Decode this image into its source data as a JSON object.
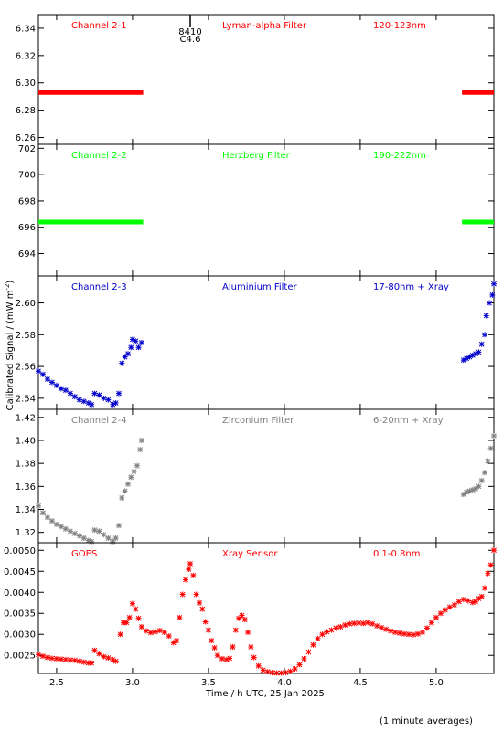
{
  "colors": {
    "red": "#ff0000",
    "green": "#00ff00",
    "blue": "#0000cc",
    "gray": "#808080",
    "axis": "#000000"
  },
  "y_axis_label": "Calibrated Signal / (mW m",
  "y_axis_label_sup": "-2",
  "y_axis_label_end": ")",
  "footnote": "(1 minute averages)",
  "event_marker": {
    "time": 3.38,
    "line1": "8410",
    "line2": "C4.6"
  },
  "chart_data": [
    {
      "type": "scatter",
      "color": "red",
      "labels": [
        "Channel 2-1",
        "Lyman-alpha Filter",
        "120-123nm"
      ],
      "xlim": [
        2.38,
        5.38
      ],
      "ylim": [
        6.255,
        6.35
      ],
      "yticks": [
        6.26,
        6.28,
        6.3,
        6.32,
        6.34
      ],
      "ytick_labels": [
        "6.26",
        "6.28",
        "6.30",
        "6.32",
        "6.34"
      ],
      "segments": [
        {
          "x0": 2.38,
          "x1": 3.07,
          "y": 6.293
        },
        {
          "x0": 5.17,
          "x1": 5.38,
          "y": 6.293
        }
      ]
    },
    {
      "type": "scatter",
      "color": "green",
      "labels": [
        "Channel 2-2",
        "Herzberg Filter",
        "190-222nm"
      ],
      "xlim": [
        2.38,
        5.38
      ],
      "ylim": [
        692.3,
        702.3
      ],
      "yticks": [
        694,
        696,
        698,
        700,
        702
      ],
      "ytick_labels": [
        "694",
        "696",
        "698",
        "700",
        "702"
      ],
      "segments": [
        {
          "x0": 2.38,
          "x1": 3.07,
          "y": 696.4
        },
        {
          "x0": 5.17,
          "x1": 5.38,
          "y": 696.4
        }
      ]
    },
    {
      "type": "scatter",
      "color": "blue",
      "labels": [
        "Channel 2-3",
        "Aluminium Filter",
        "17-80nm + Xray"
      ],
      "xlim": [
        2.38,
        5.38
      ],
      "ylim": [
        2.533,
        2.617
      ],
      "yticks": [
        2.54,
        2.56,
        2.58,
        2.6
      ],
      "ytick_labels": [
        "2.54",
        "2.56",
        "2.58",
        "2.60"
      ],
      "points": [
        [
          2.38,
          2.557
        ],
        [
          2.41,
          2.555
        ],
        [
          2.44,
          2.552
        ],
        [
          2.47,
          2.55
        ],
        [
          2.5,
          2.548
        ],
        [
          2.53,
          2.546
        ],
        [
          2.56,
          2.545
        ],
        [
          2.59,
          2.543
        ],
        [
          2.62,
          2.541
        ],
        [
          2.65,
          2.539
        ],
        [
          2.68,
          2.538
        ],
        [
          2.71,
          2.537
        ],
        [
          2.73,
          2.536
        ],
        [
          2.75,
          2.543
        ],
        [
          2.78,
          2.542
        ],
        [
          2.81,
          2.54
        ],
        [
          2.84,
          2.539
        ],
        [
          2.87,
          2.536
        ],
        [
          2.89,
          2.537
        ],
        [
          2.91,
          2.543
        ],
        [
          2.93,
          2.562
        ],
        [
          2.95,
          2.566
        ],
        [
          2.97,
          2.568
        ],
        [
          2.99,
          2.572
        ],
        [
          3.0,
          2.577
        ],
        [
          3.02,
          2.576
        ],
        [
          3.04,
          2.572
        ],
        [
          3.06,
          2.575
        ],
        [
          5.18,
          2.564
        ],
        [
          5.2,
          2.565
        ],
        [
          5.22,
          2.566
        ],
        [
          5.24,
          2.567
        ],
        [
          5.26,
          2.568
        ],
        [
          5.28,
          2.569
        ],
        [
          5.3,
          2.574
        ],
        [
          5.32,
          2.58
        ],
        [
          5.33,
          2.592
        ],
        [
          5.35,
          2.6
        ],
        [
          5.37,
          2.605
        ],
        [
          5.38,
          2.612
        ]
      ]
    },
    {
      "type": "scatter",
      "color": "gray",
      "labels": [
        "Channel 2-4",
        "Zirconium Filter",
        "6-20nm + Xray"
      ],
      "xlim": [
        2.38,
        5.38
      ],
      "ylim": [
        1.311,
        1.427
      ],
      "yticks": [
        1.32,
        1.34,
        1.36,
        1.38,
        1.4,
        1.42
      ],
      "ytick_labels": [
        "1.32",
        "1.34",
        "1.36",
        "1.38",
        "1.40",
        "1.42"
      ],
      "points": [
        [
          2.38,
          1.343
        ],
        [
          2.41,
          1.337
        ],
        [
          2.44,
          1.333
        ],
        [
          2.47,
          1.33
        ],
        [
          2.5,
          1.327
        ],
        [
          2.53,
          1.325
        ],
        [
          2.56,
          1.323
        ],
        [
          2.59,
          1.321
        ],
        [
          2.62,
          1.319
        ],
        [
          2.65,
          1.317
        ],
        [
          2.68,
          1.315
        ],
        [
          2.71,
          1.313
        ],
        [
          2.73,
          1.312
        ],
        [
          2.75,
          1.322
        ],
        [
          2.78,
          1.321
        ],
        [
          2.81,
          1.318
        ],
        [
          2.84,
          1.315
        ],
        [
          2.87,
          1.312
        ],
        [
          2.89,
          1.315
        ],
        [
          2.91,
          1.326
        ],
        [
          2.93,
          1.35
        ],
        [
          2.95,
          1.356
        ],
        [
          2.97,
          1.362
        ],
        [
          2.99,
          1.368
        ],
        [
          3.01,
          1.373
        ],
        [
          3.03,
          1.378
        ],
        [
          3.05,
          1.392
        ],
        [
          3.06,
          1.4
        ],
        [
          5.18,
          1.353
        ],
        [
          5.2,
          1.355
        ],
        [
          5.22,
          1.356
        ],
        [
          5.24,
          1.357
        ],
        [
          5.26,
          1.358
        ],
        [
          5.28,
          1.36
        ],
        [
          5.3,
          1.365
        ],
        [
          5.32,
          1.372
        ],
        [
          5.34,
          1.382
        ],
        [
          5.36,
          1.393
        ],
        [
          5.38,
          1.404
        ]
      ]
    },
    {
      "type": "scatter",
      "color": "red",
      "labels": [
        "GOES",
        "Xray Sensor",
        "0.1-0.8nm"
      ],
      "xlim": [
        2.38,
        5.38
      ],
      "ylim": [
        0.00207,
        0.00518
      ],
      "yticks": [
        0.0025,
        0.003,
        0.0035,
        0.004,
        0.0045,
        0.005
      ],
      "ytick_labels": [
        "0.0025",
        "0.0030",
        "0.0035",
        "0.0040",
        "0.0045",
        "0.0050"
      ],
      "xticks": [
        2.5,
        3.0,
        3.5,
        4.0,
        4.5,
        5.0
      ],
      "xtick_labels": [
        "2.5",
        "3.0",
        "3.5",
        "4.0",
        "4.5",
        "5.0"
      ],
      "xlabel": "Time / h UTC, 25 Jan 2025",
      "points": [
        [
          2.38,
          0.00252
        ],
        [
          2.41,
          0.00248
        ],
        [
          2.44,
          0.00245
        ],
        [
          2.47,
          0.00243
        ],
        [
          2.5,
          0.00242
        ],
        [
          2.53,
          0.00241
        ],
        [
          2.56,
          0.0024
        ],
        [
          2.59,
          0.00239
        ],
        [
          2.62,
          0.00238
        ],
        [
          2.65,
          0.00236
        ],
        [
          2.68,
          0.00234
        ],
        [
          2.71,
          0.00232
        ],
        [
          2.73,
          0.00232
        ],
        [
          2.75,
          0.00262
        ],
        [
          2.78,
          0.00254
        ],
        [
          2.81,
          0.00247
        ],
        [
          2.84,
          0.00244
        ],
        [
          2.87,
          0.0024
        ],
        [
          2.89,
          0.00236
        ],
        [
          2.92,
          0.003
        ],
        [
          2.94,
          0.00328
        ],
        [
          2.96,
          0.00328
        ],
        [
          2.98,
          0.0034
        ],
        [
          3.0,
          0.00373
        ],
        [
          3.02,
          0.0036
        ],
        [
          3.04,
          0.00338
        ],
        [
          3.06,
          0.00318
        ],
        [
          3.09,
          0.00308
        ],
        [
          3.12,
          0.00304
        ],
        [
          3.15,
          0.00306
        ],
        [
          3.18,
          0.00309
        ],
        [
          3.21,
          0.00305
        ],
        [
          3.24,
          0.00296
        ],
        [
          3.27,
          0.0028
        ],
        [
          3.29,
          0.00285
        ],
        [
          3.31,
          0.0034
        ],
        [
          3.33,
          0.00395
        ],
        [
          3.35,
          0.0043
        ],
        [
          3.37,
          0.00455
        ],
        [
          3.38,
          0.00468
        ],
        [
          3.4,
          0.0044
        ],
        [
          3.42,
          0.00395
        ],
        [
          3.44,
          0.00375
        ],
        [
          3.46,
          0.0036
        ],
        [
          3.48,
          0.0033
        ],
        [
          3.5,
          0.0031
        ],
        [
          3.52,
          0.00285
        ],
        [
          3.54,
          0.00268
        ],
        [
          3.56,
          0.0025
        ],
        [
          3.59,
          0.00242
        ],
        [
          3.62,
          0.0024
        ],
        [
          3.64,
          0.00243
        ],
        [
          3.66,
          0.0027
        ],
        [
          3.68,
          0.0031
        ],
        [
          3.7,
          0.00338
        ],
        [
          3.72,
          0.00345
        ],
        [
          3.74,
          0.00335
        ],
        [
          3.76,
          0.00305
        ],
        [
          3.78,
          0.0027
        ],
        [
          3.8,
          0.00245
        ],
        [
          3.83,
          0.00225
        ],
        [
          3.86,
          0.00215
        ],
        [
          3.89,
          0.00211
        ],
        [
          3.92,
          0.00209
        ],
        [
          3.95,
          0.00208
        ],
        [
          3.98,
          0.00208
        ],
        [
          4.01,
          0.00209
        ],
        [
          4.04,
          0.00212
        ],
        [
          4.07,
          0.00218
        ],
        [
          4.1,
          0.00228
        ],
        [
          4.13,
          0.00242
        ],
        [
          4.16,
          0.00258
        ],
        [
          4.19,
          0.00275
        ],
        [
          4.22,
          0.0029
        ],
        [
          4.25,
          0.003
        ],
        [
          4.28,
          0.00306
        ],
        [
          4.31,
          0.0031
        ],
        [
          4.34,
          0.00315
        ],
        [
          4.37,
          0.00318
        ],
        [
          4.4,
          0.00322
        ],
        [
          4.43,
          0.00325
        ],
        [
          4.46,
          0.00326
        ],
        [
          4.49,
          0.00327
        ],
        [
          4.52,
          0.00326
        ],
        [
          4.55,
          0.00328
        ],
        [
          4.58,
          0.00325
        ],
        [
          4.61,
          0.0032
        ],
        [
          4.64,
          0.00316
        ],
        [
          4.67,
          0.00312
        ],
        [
          4.7,
          0.00308
        ],
        [
          4.73,
          0.00305
        ],
        [
          4.76,
          0.00303
        ],
        [
          4.79,
          0.00301
        ],
        [
          4.82,
          0.003
        ],
        [
          4.85,
          0.00299
        ],
        [
          4.88,
          0.00301
        ],
        [
          4.91,
          0.00305
        ],
        [
          4.94,
          0.00315
        ],
        [
          4.97,
          0.00328
        ],
        [
          5.0,
          0.0034
        ],
        [
          5.03,
          0.0035
        ],
        [
          5.06,
          0.00358
        ],
        [
          5.09,
          0.00365
        ],
        [
          5.12,
          0.0037
        ],
        [
          5.15,
          0.00378
        ],
        [
          5.18,
          0.00383
        ],
        [
          5.21,
          0.0038
        ],
        [
          5.24,
          0.00376
        ],
        [
          5.26,
          0.00378
        ],
        [
          5.28,
          0.00385
        ],
        [
          5.3,
          0.0039
        ],
        [
          5.32,
          0.0041
        ],
        [
          5.34,
          0.00445
        ],
        [
          5.36,
          0.00465
        ],
        [
          5.38,
          0.005
        ]
      ]
    }
  ]
}
